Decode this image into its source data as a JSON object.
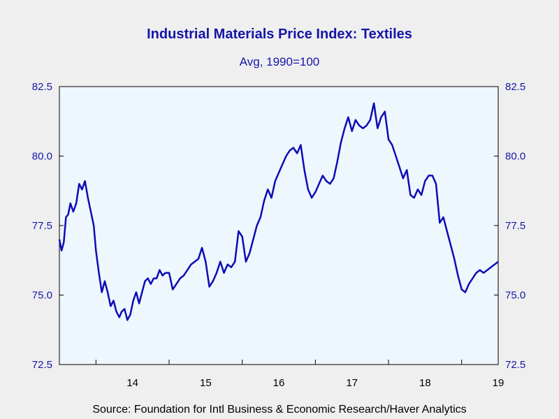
{
  "chart_data": {
    "type": "line",
    "title": "Industrial Materials Price Index: Textiles",
    "subtitle": "Avg, 1990=100",
    "source": "Source:  Foundation for Intl Business & Economic Research/Haver Analytics",
    "ylim": [
      72.5,
      82.5
    ],
    "yticks": [
      "72.5",
      "75.0",
      "77.5",
      "80.0",
      "82.5"
    ],
    "xlim": [
      2013.5,
      2019.5
    ],
    "year_labels": [
      "14",
      "15",
      "16",
      "17",
      "18",
      "19"
    ],
    "grid": false,
    "colors": {
      "line": "#0c0cb4",
      "plot_bg": "#eef6fe",
      "text": "#1515a8"
    },
    "series": [
      {
        "x": [
          2013.5,
          2013.53,
          2013.56,
          2013.59,
          2013.62,
          2013.65,
          2013.69,
          2013.73,
          2013.77,
          2013.81,
          2013.85,
          2013.89,
          2013.93,
          2013.97,
          2014.0,
          2014.04,
          2014.08,
          2014.12,
          2014.16,
          2014.2,
          2014.24,
          2014.28,
          2014.32,
          2014.35,
          2014.39,
          2014.43,
          2014.47,
          2014.51,
          2014.55,
          2014.59,
          2014.63,
          2014.67,
          2014.71,
          2014.75,
          2014.79,
          2014.83,
          2014.87,
          2014.91,
          2014.95,
          2015.0,
          2015.05,
          2015.1,
          2015.15,
          2015.2,
          2015.25,
          2015.3,
          2015.35,
          2015.4,
          2015.45,
          2015.5,
          2015.55,
          2015.6,
          2015.65,
          2015.7,
          2015.75,
          2015.8,
          2015.85,
          2015.9,
          2015.95,
          2016.0,
          2016.05,
          2016.1,
          2016.15,
          2016.2,
          2016.25,
          2016.3,
          2016.35,
          2016.4,
          2016.45,
          2016.5,
          2016.55,
          2016.6,
          2016.65,
          2016.7,
          2016.75,
          2016.8,
          2016.85,
          2016.9,
          2016.95,
          2017.0,
          2017.05,
          2017.1,
          2017.15,
          2017.2,
          2017.25,
          2017.3,
          2017.35,
          2017.4,
          2017.45,
          2017.5,
          2017.55,
          2017.6,
          2017.65,
          2017.7,
          2017.75,
          2017.8,
          2017.85,
          2017.9,
          2017.95,
          2018.0,
          2018.05,
          2018.1,
          2018.15,
          2018.2,
          2018.25,
          2018.3,
          2018.35,
          2018.4,
          2018.45,
          2018.5,
          2018.55,
          2018.6,
          2018.65,
          2018.7,
          2018.75,
          2018.8,
          2018.85,
          2018.9,
          2018.95,
          2019.0,
          2019.05,
          2019.1,
          2019.15,
          2019.2,
          2019.25,
          2019.3,
          2019.35,
          2019.4,
          2019.45,
          2019.5
        ],
        "values": [
          77.0,
          76.6,
          76.9,
          77.8,
          77.9,
          78.3,
          78.0,
          78.3,
          79.0,
          78.8,
          79.1,
          78.5,
          78.0,
          77.5,
          76.6,
          75.8,
          75.1,
          75.5,
          75.1,
          74.6,
          74.8,
          74.4,
          74.2,
          74.4,
          74.5,
          74.1,
          74.3,
          74.8,
          75.1,
          74.7,
          75.1,
          75.5,
          75.6,
          75.4,
          75.6,
          75.6,
          75.9,
          75.7,
          75.8,
          75.8,
          75.2,
          75.4,
          75.6,
          75.7,
          75.9,
          76.1,
          76.2,
          76.3,
          76.7,
          76.2,
          75.3,
          75.5,
          75.8,
          76.2,
          75.8,
          76.1,
          76.0,
          76.2,
          77.3,
          77.1,
          76.2,
          76.5,
          77.0,
          77.5,
          77.8,
          78.4,
          78.8,
          78.5,
          79.1,
          79.4,
          79.7,
          80.0,
          80.2,
          80.3,
          80.1,
          80.4,
          79.5,
          78.8,
          78.5,
          78.7,
          79.0,
          79.3,
          79.1,
          79.0,
          79.2,
          79.8,
          80.5,
          81.0,
          81.4,
          80.9,
          81.3,
          81.1,
          81.0,
          81.1,
          81.3,
          81.9,
          81.0,
          81.4,
          81.6,
          80.6,
          80.4,
          80.0,
          79.6,
          79.2,
          79.5,
          78.6,
          78.5,
          78.8,
          78.6,
          79.1,
          79.3,
          79.3,
          79.0,
          77.6,
          77.8,
          77.3,
          76.8,
          76.3,
          75.7,
          75.2,
          75.1,
          75.4,
          75.6,
          75.8,
          75.9,
          75.8,
          75.9,
          76.0,
          76.1,
          76.2
        ]
      }
    ]
  }
}
